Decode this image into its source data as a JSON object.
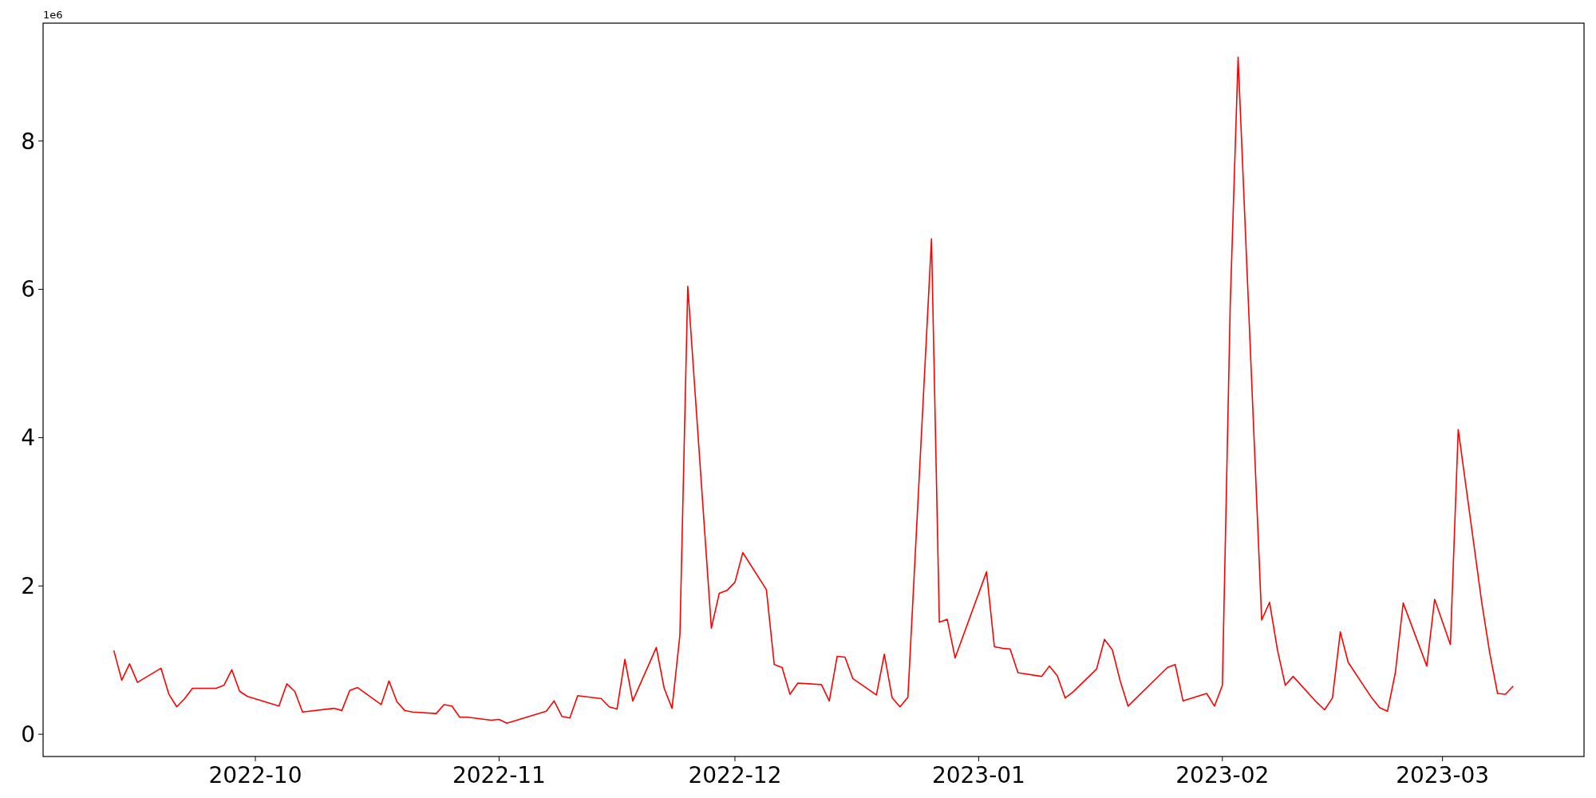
{
  "chart_data": {
    "type": "line",
    "annotations": [
      "1e6"
    ],
    "x": [
      "2022-09-13",
      "2022-09-14",
      "2022-09-15",
      "2022-09-16",
      "2022-09-19",
      "2022-09-20",
      "2022-09-21",
      "2022-09-22",
      "2022-09-23",
      "2022-09-26",
      "2022-09-27",
      "2022-09-28",
      "2022-09-29",
      "2022-09-30",
      "2022-10-04",
      "2022-10-05",
      "2022-10-06",
      "2022-10-07",
      "2022-10-11",
      "2022-10-12",
      "2022-10-13",
      "2022-10-14",
      "2022-10-17",
      "2022-10-18",
      "2022-10-19",
      "2022-10-20",
      "2022-10-21",
      "2022-10-24",
      "2022-10-25",
      "2022-10-26",
      "2022-10-27",
      "2022-10-28",
      "2022-10-31",
      "2022-11-01",
      "2022-11-02",
      "2022-11-07",
      "2022-11-08",
      "2022-11-09",
      "2022-11-10",
      "2022-11-11",
      "2022-11-14",
      "2022-11-15",
      "2022-11-16",
      "2022-11-17",
      "2022-11-18",
      "2022-11-21",
      "2022-11-22",
      "2022-11-23",
      "2022-11-24",
      "2022-11-25",
      "2022-11-28",
      "2022-11-29",
      "2022-11-30",
      "2022-12-01",
      "2022-12-02",
      "2022-12-05",
      "2022-12-06",
      "2022-12-07",
      "2022-12-08",
      "2022-12-09",
      "2022-12-12",
      "2022-12-13",
      "2022-12-14",
      "2022-12-15",
      "2022-12-16",
      "2022-12-19",
      "2022-12-20",
      "2022-12-21",
      "2022-12-22",
      "2022-12-23",
      "2022-12-26",
      "2022-12-27",
      "2022-12-28",
      "2022-12-29",
      "2023-01-02",
      "2023-01-03",
      "2023-01-04",
      "2023-01-05",
      "2023-01-06",
      "2023-01-09",
      "2023-01-10",
      "2023-01-11",
      "2023-01-12",
      "2023-01-13",
      "2023-01-16",
      "2023-01-17",
      "2023-01-18",
      "2023-01-19",
      "2023-01-20",
      "2023-01-25",
      "2023-01-26",
      "2023-01-27",
      "2023-01-30",
      "2023-01-31",
      "2023-02-01",
      "2023-02-02",
      "2023-02-03",
      "2023-02-06",
      "2023-02-07",
      "2023-02-08",
      "2023-02-09",
      "2023-02-10",
      "2023-02-13",
      "2023-02-14",
      "2023-02-15",
      "2023-02-16",
      "2023-02-17",
      "2023-02-20",
      "2023-02-21",
      "2023-02-22",
      "2023-02-23",
      "2023-02-24",
      "2023-02-27",
      "2023-02-28",
      "2023-03-02",
      "2023-03-03",
      "2023-03-06",
      "2023-03-07",
      "2023-03-08",
      "2023-03-09",
      "2023-03-10"
    ],
    "series": [
      {
        "color": "#ff0000",
        "values": [
          1.13,
          0.73,
          0.95,
          0.7,
          0.89,
          0.54,
          0.37,
          0.48,
          0.62,
          0.62,
          0.66,
          0.87,
          0.58,
          0.51,
          0.38,
          0.68,
          0.58,
          0.3,
          0.35,
          0.32,
          0.59,
          0.63,
          0.4,
          0.72,
          0.44,
          0.32,
          0.3,
          0.28,
          0.4,
          0.38,
          0.23,
          0.23,
          0.19,
          0.2,
          0.15,
          0.31,
          0.45,
          0.24,
          0.22,
          0.52,
          0.48,
          0.37,
          0.34,
          1.01,
          0.45,
          1.17,
          0.62,
          0.35,
          1.34,
          6.04,
          1.43,
          1.9,
          1.94,
          2.05,
          2.45,
          1.95,
          0.94,
          0.9,
          0.54,
          0.69,
          0.67,
          0.45,
          1.05,
          1.04,
          0.75,
          0.53,
          1.08,
          0.49,
          0.37,
          0.5,
          6.68,
          1.51,
          1.55,
          1.03,
          2.19,
          1.18,
          1.16,
          1.15,
          0.83,
          0.78,
          0.92,
          0.79,
          0.49,
          0.57,
          0.88,
          1.28,
          1.14,
          0.72,
          0.38,
          0.9,
          0.94,
          0.45,
          0.55,
          0.38,
          0.66,
          5.8,
          9.13,
          1.54,
          1.78,
          1.14,
          0.66,
          0.78,
          0.43,
          0.33,
          0.49,
          1.38,
          0.97,
          0.49,
          0.36,
          0.31,
          0.83,
          1.77,
          0.92,
          1.82,
          1.21,
          4.11,
          1.77,
          1.1,
          0.55,
          0.54,
          0.65
        ]
      }
    ],
    "xlim": [
      "2022-09-04",
      "2023-03-19"
    ],
    "xticks": [
      {
        "value": "2022-10-01",
        "label": "2022-10"
      },
      {
        "value": "2022-11-01",
        "label": "2022-11"
      },
      {
        "value": "2022-12-01",
        "label": "2022-12"
      },
      {
        "value": "2023-01-01",
        "label": "2023-01"
      },
      {
        "value": "2023-02-01",
        "label": "2023-02"
      },
      {
        "value": "2023-03-01",
        "label": "2023-03"
      }
    ],
    "ylim": [
      -0.3,
      9.59
    ],
    "yticks": [
      0,
      2,
      4,
      6,
      8
    ],
    "grid": false,
    "marker": "none",
    "line_style": "solid"
  }
}
